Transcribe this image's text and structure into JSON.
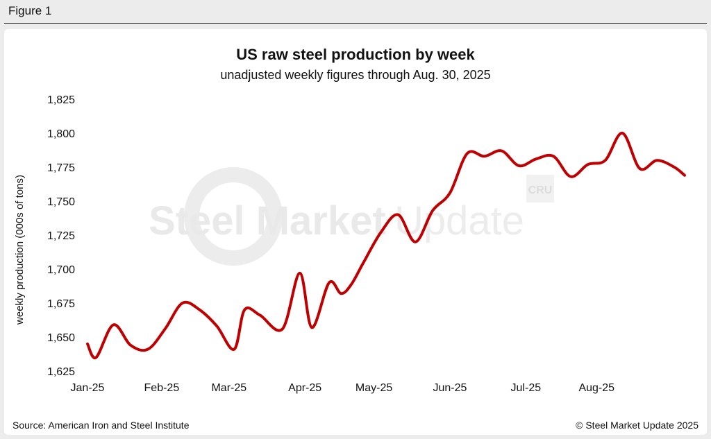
{
  "figure_label": "Figure 1",
  "watermark": {
    "text_bold": "Steel Market",
    "text_light": "Update",
    "badge": "CRU"
  },
  "footer": {
    "source": "Source: American Iron and Steel Institute",
    "copyright": "© Steel Market Update 2025"
  },
  "colors": {
    "line": "#c00000",
    "background": "#ececec",
    "panel": "#ffffff"
  },
  "chart_data": {
    "type": "line",
    "title": "US raw steel production by week",
    "subtitle": "unadjusted weekly figures through Aug. 30, 2025",
    "xlabel": "",
    "ylabel": "weekly production (000s of tons)",
    "ylim": [
      1625,
      1825
    ],
    "yticks": [
      1625,
      1650,
      1675,
      1700,
      1725,
      1750,
      1775,
      1800,
      1825
    ],
    "ytick_labels": [
      "1,625",
      "1,650",
      "1,675",
      "1,700",
      "1,725",
      "1,750",
      "1,775",
      "1,800",
      "1,825"
    ],
    "x_tick_labels": [
      "Jan-25",
      "Feb-25",
      "Mar-25",
      "Apr-25",
      "May-25",
      "Jun-25",
      "Jul-25",
      "Aug-25"
    ],
    "x_tick_weeks": [
      0,
      4.3,
      8.2,
      12.6,
      16.6,
      21,
      25.4,
      29.5
    ],
    "grid": false,
    "legend": "none",
    "series": [
      {
        "name": "weekly production",
        "x": [
          0,
          0.5,
          1.5,
          2.5,
          3.5,
          4.5,
          5.5,
          6.5,
          7.5,
          8.5,
          9.1,
          10,
          11.3,
          12.3,
          13,
          14,
          14.7,
          15.3,
          16,
          17,
          18,
          19,
          20,
          21,
          22,
          23,
          24,
          25,
          26,
          27,
          28,
          29,
          30,
          31,
          32,
          33,
          34,
          34.6
        ],
        "values": [
          1645,
          1635,
          1659,
          1644,
          1641,
          1656,
          1675,
          1670,
          1658,
          1641,
          1670,
          1666,
          1656,
          1697,
          1657,
          1690,
          1682,
          1689,
          1705,
          1727,
          1740,
          1720,
          1743,
          1756,
          1785,
          1783,
          1787,
          1776,
          1781,
          1783,
          1768,
          1777,
          1780,
          1800,
          1774,
          1780,
          1775,
          1769
        ]
      }
    ]
  }
}
